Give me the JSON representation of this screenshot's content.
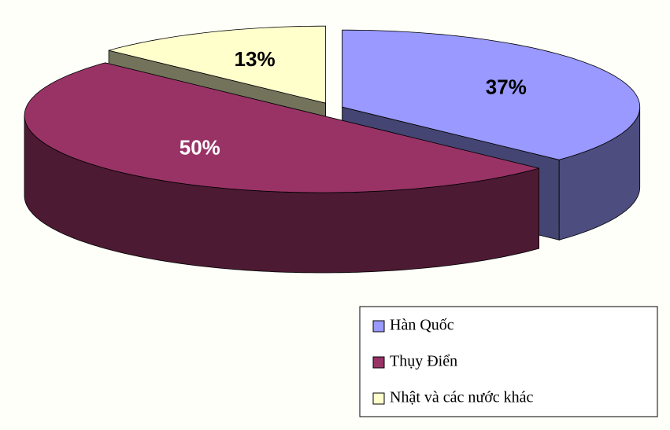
{
  "chart_data": {
    "type": "pie3d",
    "categories": [
      "Hàn Quốc",
      "Thụy Điển",
      "Nhật và các nước khác"
    ],
    "values": [
      37,
      50,
      13
    ],
    "value_labels": [
      "37%",
      "50%",
      "13%"
    ],
    "colors": [
      "#9999ff",
      "#993366",
      "#ffffcc"
    ],
    "legend": "bottom-right"
  }
}
